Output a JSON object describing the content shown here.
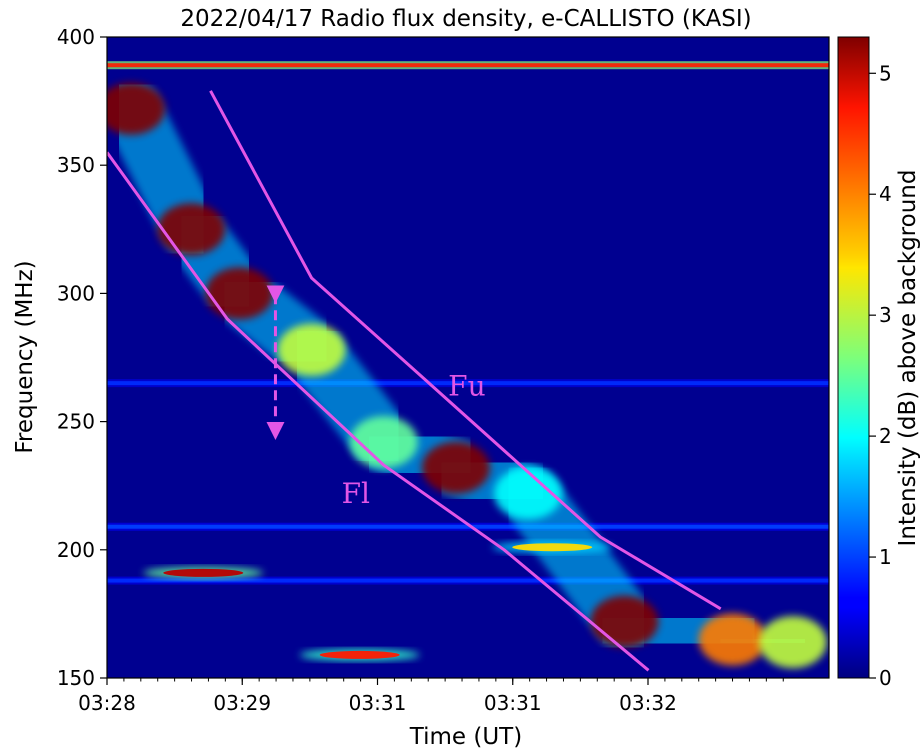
{
  "chart_data": {
    "type": "heatmap",
    "title": "2022/04/17  Radio flux density, e-CALLISTO (KASI)",
    "xlabel": "Time (UT)",
    "ylabel": "Frequency (MHz)",
    "colorbar_label": "Intensity (dB) above background",
    "colormap": "jet",
    "xlim": [
      "03:28:00",
      "03:33:00"
    ],
    "ylim": [
      150,
      400
    ],
    "clim": [
      0,
      5.3
    ],
    "x_ticks": [
      "03:28",
      "03:29",
      "03:31",
      "03:31",
      "03:32"
    ],
    "y_ticks": [
      150,
      200,
      250,
      300,
      350,
      400
    ],
    "colorbar_ticks": [
      0,
      1,
      2,
      3,
      4,
      5
    ],
    "background_level_db": 0.3,
    "features": [
      {
        "kind": "interference_band",
        "freq_mhz": 389,
        "intensity_db": 4.5
      },
      {
        "kind": "interference_band",
        "freq_mhz": 209,
        "intensity_db": 1.0
      },
      {
        "kind": "interference_band",
        "freq_mhz": 188,
        "intensity_db": 0.9
      },
      {
        "kind": "interference_band",
        "freq_mhz": 265,
        "intensity_db": 0.9
      },
      {
        "kind": "emission_lane",
        "description_points": [
          {
            "time": "03:28:10",
            "freq_mhz": 372,
            "intensity_db": 5.3
          },
          {
            "time": "03:28:35",
            "freq_mhz": 325,
            "intensity_db": 5.3
          },
          {
            "time": "03:28:55",
            "freq_mhz": 300,
            "intensity_db": 5.3
          },
          {
            "time": "03:29:25",
            "freq_mhz": 278,
            "intensity_db": 3.0
          },
          {
            "time": "03:29:55",
            "freq_mhz": 242,
            "intensity_db": 2.5
          },
          {
            "time": "03:30:25",
            "freq_mhz": 232,
            "intensity_db": 5.3
          },
          {
            "time": "03:30:55",
            "freq_mhz": 222,
            "intensity_db": 2.0
          },
          {
            "time": "03:31:35",
            "freq_mhz": 172,
            "intensity_db": 5.3
          },
          {
            "time": "03:32:20",
            "freq_mhz": 165,
            "intensity_db": 4.0
          },
          {
            "time": "03:32:45",
            "freq_mhz": 164,
            "intensity_db": 3.0
          }
        ]
      },
      {
        "kind": "emission_patch",
        "time": "03:28:40",
        "freq_mhz": 191,
        "intensity_db": 5.0
      },
      {
        "kind": "emission_patch",
        "time": "03:31:05",
        "freq_mhz": 201,
        "intensity_db": 3.5
      },
      {
        "kind": "emission_patch",
        "time": "03:29:45",
        "freq_mhz": 159,
        "intensity_db": 4.5
      }
    ],
    "annotations": [
      {
        "label": "Fu",
        "curve": [
          {
            "time": "03:28:43",
            "freq_mhz": 379
          },
          {
            "time": "03:29:25",
            "freq_mhz": 306
          },
          {
            "time": "03:30:15",
            "freq_mhz": 264
          },
          {
            "time": "03:31:25",
            "freq_mhz": 205
          },
          {
            "time": "03:32:15",
            "freq_mhz": 177
          }
        ]
      },
      {
        "label": "Fl",
        "curve": [
          {
            "time": "03:28:00",
            "freq_mhz": 355
          },
          {
            "time": "03:28:50",
            "freq_mhz": 290
          },
          {
            "time": "03:29:55",
            "freq_mhz": 233
          },
          {
            "time": "03:30:45",
            "freq_mhz": 200
          },
          {
            "time": "03:31:45",
            "freq_mhz": 153
          }
        ]
      },
      {
        "kind": "double_arrow",
        "time": "03:29:10",
        "freq_from_mhz": 302,
        "freq_to_mhz": 244
      }
    ]
  }
}
